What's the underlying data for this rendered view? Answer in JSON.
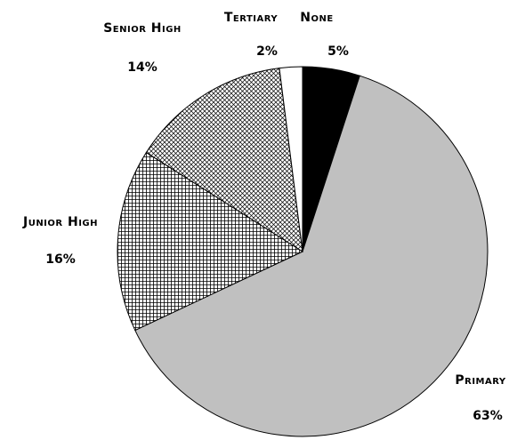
{
  "chart_data": {
    "type": "pie",
    "categories": [
      "None",
      "Primary",
      "Junior High",
      "Senior High",
      "Tertiary"
    ],
    "values": [
      5,
      63,
      16,
      14,
      2
    ],
    "value_labels": [
      "5%",
      "63%",
      "16%",
      "14%",
      "2%"
    ],
    "colors": [
      "#000000",
      "#c0c0c0",
      "#ffffff",
      "#ffffff",
      "#ffffff"
    ],
    "patterns": [
      "solid",
      "solid",
      "grid",
      "diagonal-cross",
      "solid"
    ]
  }
}
